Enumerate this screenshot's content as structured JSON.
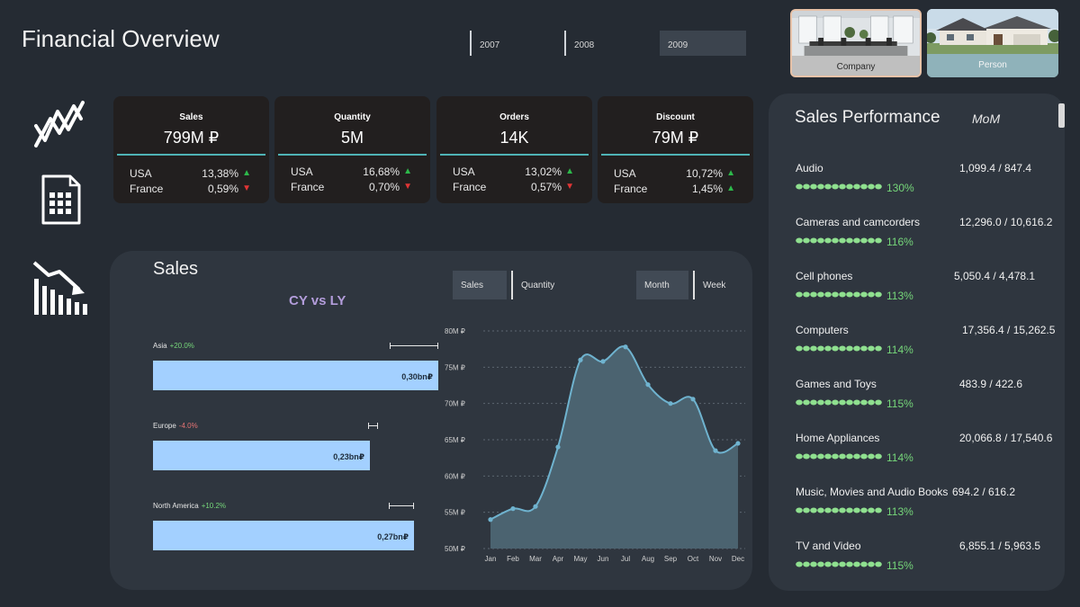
{
  "header": {
    "title": "Financial Overview"
  },
  "years": [
    {
      "label": "2007",
      "selected": false
    },
    {
      "label": "2008",
      "selected": false
    },
    {
      "label": "2009",
      "selected": true
    }
  ],
  "nav_cards": [
    {
      "label": "Company",
      "active": true
    },
    {
      "label": "Person",
      "active": false
    }
  ],
  "side_icons": [
    "trend-lines-icon",
    "calculator-icon",
    "declining-bar-chart-icon"
  ],
  "kpis": [
    {
      "label": "Sales",
      "value": "799M ₽",
      "rows": [
        {
          "country": "USA",
          "pct": "13,38%",
          "trend": "up"
        },
        {
          "country": "France",
          "pct": "0,59%",
          "trend": "down"
        }
      ]
    },
    {
      "label": "Quantity",
      "value": "5M",
      "rows": [
        {
          "country": "USA",
          "pct": "16,68%",
          "trend": "up"
        },
        {
          "country": "France",
          "pct": "0,70%",
          "trend": "down"
        }
      ]
    },
    {
      "label": "Orders",
      "value": "14K",
      "rows": [
        {
          "country": "USA",
          "pct": "13,02%",
          "trend": "up"
        },
        {
          "country": "France",
          "pct": "0,57%",
          "trend": "down"
        }
      ]
    },
    {
      "label": "Discount",
      "value": "79M ₽",
      "rows": [
        {
          "country": "USA",
          "pct": "10,72%",
          "trend": "up"
        },
        {
          "country": "France",
          "pct": "1,45%",
          "trend": "up"
        }
      ]
    }
  ],
  "sales_panel": {
    "title": "Sales",
    "subtitle": "CY vs LY",
    "metric_toggle": [
      {
        "label": "Sales",
        "selected": true
      },
      {
        "label": "Quantity",
        "selected": false
      }
    ],
    "period_toggle": [
      {
        "label": "Month",
        "selected": true
      },
      {
        "label": "Week",
        "selected": false
      }
    ],
    "regions": [
      {
        "name": "Asia",
        "change": "+20.0%",
        "value_label": "0,30bn₽",
        "value": 0.3
      },
      {
        "name": "Europe",
        "change": "-4.0%",
        "value_label": "0,23bn₽",
        "value": 0.23
      },
      {
        "name": "North America",
        "change": "+10.2%",
        "value_label": "0,27bn₽",
        "value": 0.27
      }
    ]
  },
  "chart_data": {
    "type": "area",
    "title": "",
    "xlabel": "",
    "ylabel": "",
    "categories": [
      "Jan",
      "Feb",
      "Mar",
      "Apr",
      "May",
      "Jun",
      "Jul",
      "Aug",
      "Sep",
      "Oct",
      "Nov",
      "Dec"
    ],
    "series": [
      {
        "values": [
          54.0,
          55.5,
          55.8,
          64.0,
          76.0,
          75.8,
          77.8,
          72.6,
          70.0,
          70.6,
          63.5,
          64.5
        ]
      }
    ],
    "ylim": [
      50,
      80
    ],
    "yticks": [
      "50M ₽",
      "55M ₽",
      "60M ₽",
      "65M ₽",
      "70M ₽",
      "75M ₽",
      "80M ₽"
    ],
    "grid": true,
    "colors": {
      "fill": "#4b6370",
      "line": "#6fb3cf"
    }
  },
  "performance": {
    "title": "Sales Performance",
    "badge": "MoM",
    "items": [
      {
        "name": "Audio",
        "values": "1,099.4 / 847.4",
        "pct": "130%"
      },
      {
        "name": "Cameras and camcorders",
        "values": "12,296.0 / 10,616.2",
        "pct": "116%"
      },
      {
        "name": "Cell phones",
        "values": "5,050.4 / 4,478.1",
        "pct": "113%"
      },
      {
        "name": "Computers",
        "values": "17,356.4 / 15,262.5",
        "pct": "114%"
      },
      {
        "name": "Games and Toys",
        "values": "483.9 / 422.6",
        "pct": "115%"
      },
      {
        "name": "Home Appliances",
        "values": "20,066.8 / 17,540.6",
        "pct": "114%"
      },
      {
        "name": "Music, Movies and Audio Books",
        "values": "694.2 / 616.2",
        "pct": "113%"
      },
      {
        "name": "TV and Video",
        "values": "6,855.1 / 5,963.5",
        "pct": "115%"
      }
    ]
  }
}
